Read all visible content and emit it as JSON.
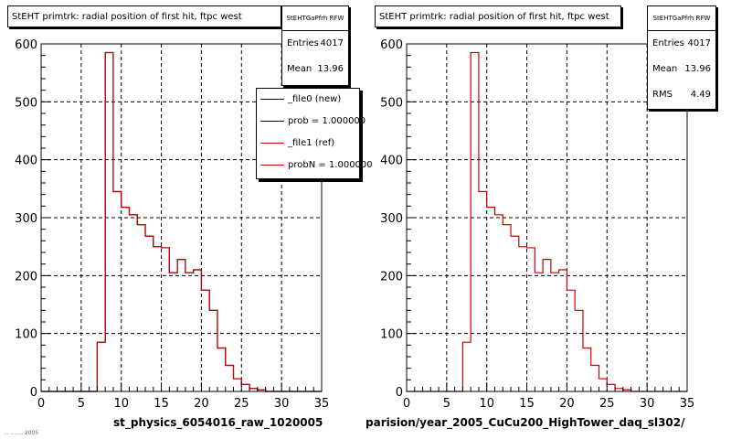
{
  "pads": [
    {
      "title": "StEHT primtrk: radial position of first hit, ftpc west",
      "stats": {
        "name": "StEHTGaPfrh RFW",
        "rows": [
          {
            "label": "Entries",
            "value": "4017"
          },
          {
            "label": "Mean",
            "value": "13.96"
          }
        ]
      },
      "legend": [
        {
          "label": "_file0 (new)",
          "color": "#000000"
        },
        {
          "label": "prob = 1.000000",
          "color": "#000000"
        },
        {
          "label": "_file1 (ref)",
          "color": "#cc0000"
        },
        {
          "label": "probN = 1.000000",
          "color": "#cc0000"
        }
      ],
      "bottom_label": "st_physics_6054016_raw_1020005"
    },
    {
      "title": "StEHT primtrk: radial position of first hit, ftpc west",
      "stats": {
        "name": "StEHTGaPfrh RFW",
        "rows": [
          {
            "label": "Entries",
            "value": "4017"
          },
          {
            "label": "Mean",
            "value": "13.96"
          },
          {
            "label": "RMS",
            "value": "4.49"
          }
        ]
      },
      "bottom_label": "parision/year_2005_CuCu200_HighTower_daq_sl302/"
    }
  ],
  "footer_note": "...  ...  ... 2005",
  "chart_data": [
    {
      "type": "bar",
      "title": "StEHT primtrk: radial position of first hit, ftpc west",
      "xlim": [
        0,
        35
      ],
      "ylim": [
        0,
        600
      ],
      "xticks": [
        0,
        5,
        10,
        15,
        20,
        25,
        30,
        35
      ],
      "yticks": [
        0,
        100,
        200,
        300,
        400,
        500,
        600
      ],
      "grid": true,
      "bin_edges": [
        0,
        1,
        2,
        3,
        4,
        5,
        6,
        7,
        8,
        9,
        10,
        11,
        12,
        13,
        14,
        15,
        16,
        17,
        18,
        19,
        20,
        21,
        22,
        23,
        24,
        25,
        26,
        27,
        28,
        29,
        30,
        31,
        32,
        33,
        34,
        35
      ],
      "series": [
        {
          "name": "_file0 (new)",
          "color": "#000000",
          "values": [
            0,
            0,
            0,
            0,
            0,
            0,
            0,
            85,
            585,
            345,
            318,
            305,
            288,
            268,
            250,
            248,
            205,
            228,
            205,
            210,
            175,
            140,
            75,
            45,
            22,
            12,
            5,
            3,
            0,
            0,
            0,
            0,
            0,
            0,
            0
          ]
        },
        {
          "name": "_file1 (ref)",
          "color": "#cc0000",
          "values": [
            0,
            0,
            0,
            0,
            0,
            0,
            0,
            85,
            585,
            345,
            318,
            305,
            288,
            268,
            250,
            248,
            205,
            228,
            205,
            210,
            175,
            140,
            75,
            45,
            22,
            12,
            5,
            3,
            0,
            0,
            0,
            0,
            0,
            0,
            0
          ]
        }
      ]
    },
    {
      "type": "bar",
      "title": "StEHT primtrk: radial position of first hit, ftpc west",
      "xlim": [
        0,
        35
      ],
      "ylim": [
        0,
        600
      ],
      "xticks": [
        0,
        5,
        10,
        15,
        20,
        25,
        30,
        35
      ],
      "yticks": [
        0,
        100,
        200,
        300,
        400,
        500,
        600
      ],
      "grid": true,
      "bin_edges": [
        0,
        1,
        2,
        3,
        4,
        5,
        6,
        7,
        8,
        9,
        10,
        11,
        12,
        13,
        14,
        15,
        16,
        17,
        18,
        19,
        20,
        21,
        22,
        23,
        24,
        25,
        26,
        27,
        28,
        29,
        30,
        31,
        32,
        33,
        34,
        35
      ],
      "series": [
        {
          "color": "#cc0000",
          "values": [
            0,
            0,
            0,
            0,
            0,
            0,
            0,
            85,
            585,
            345,
            318,
            305,
            288,
            268,
            250,
            248,
            205,
            228,
            205,
            210,
            175,
            140,
            75,
            45,
            22,
            12,
            5,
            3,
            0,
            0,
            0,
            0,
            0,
            0,
            0
          ]
        }
      ]
    }
  ]
}
